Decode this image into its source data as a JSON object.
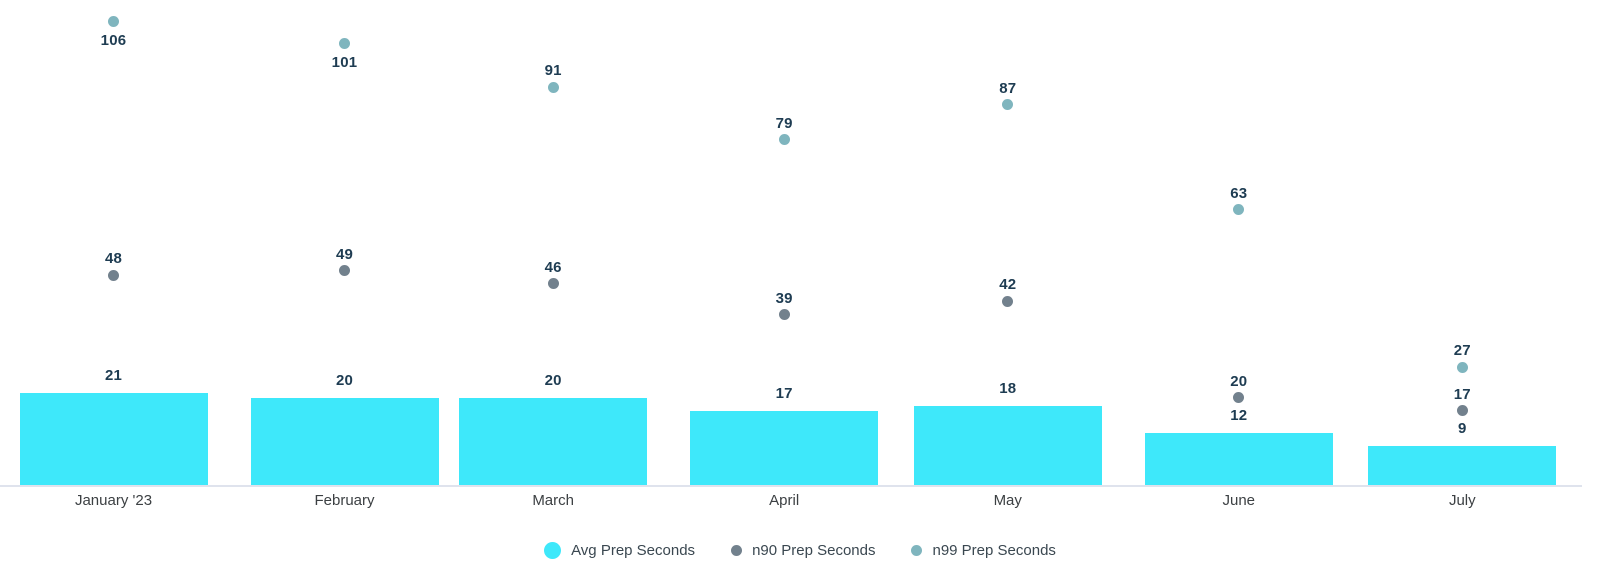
{
  "chart_data": {
    "type": "bar",
    "title": "",
    "categories": [
      "January '23",
      "February",
      "March",
      "April",
      "May",
      "June",
      "July"
    ],
    "x_day_offsets": [
      0,
      31,
      59,
      90,
      120,
      151,
      181
    ],
    "series": [
      {
        "name": "Avg Prep Seconds",
        "type": "bar",
        "color": "#3EE8FA",
        "values": [
          21,
          20,
          20,
          17,
          18,
          12,
          9
        ]
      },
      {
        "name": "n90 Prep Seconds",
        "type": "scatter",
        "color": "#72818D",
        "values": [
          48,
          49,
          46,
          39,
          42,
          20,
          17
        ],
        "label_positions": [
          "above",
          "above",
          "above",
          "above",
          "above",
          "above",
          "above"
        ]
      },
      {
        "name": "n99 Prep Seconds",
        "type": "scatter",
        "color": "#7FB5BE",
        "values": [
          106,
          101,
          91,
          79,
          87,
          63,
          27
        ],
        "label_positions": [
          "below",
          "below",
          "above",
          "above",
          "above",
          "above",
          "above"
        ]
      }
    ],
    "ylim": [
      0,
      111
    ],
    "grid": false,
    "legend_position": "bottom",
    "data_label_color": "#1E3C52",
    "axis_label_color": "#3C4043",
    "axis_line_color": "#DFE3ED",
    "background": "#FFFFFF"
  }
}
